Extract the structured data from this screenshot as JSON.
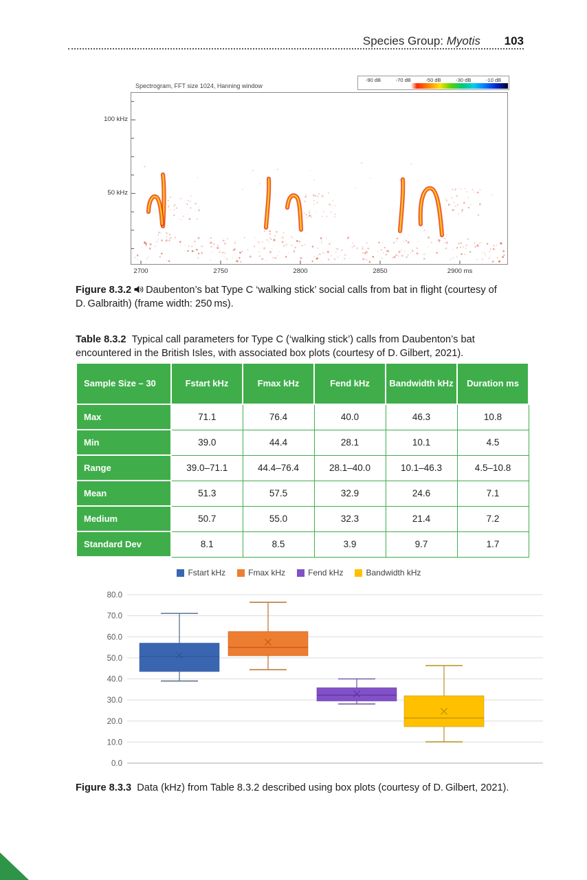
{
  "header": {
    "section_prefix": "Species Group: ",
    "section_italic": "Myotis",
    "page_number": "103"
  },
  "spectrogram": {
    "title": "Spectrogram, FFT size 1024, Hanning window",
    "colorbar": {
      "labels": [
        "-90 dB",
        "-70 dB",
        "-50 dB",
        "-30 dB",
        "-10 dB"
      ],
      "gradient": [
        "#ff2a00",
        "#ff8400",
        "#ffe000",
        "#52d400",
        "#00c87c",
        "#00cfe8",
        "#0078ff",
        "#0022cc",
        "#000428"
      ]
    },
    "y_ticks": [
      "100 kHz",
      "50 kHz"
    ],
    "x_ticks": [
      "2700",
      "2750",
      "2800",
      "2850",
      "2900 ms"
    ],
    "call_groups_ms": [
      2715,
      2800,
      2890
    ]
  },
  "figure_832": {
    "label": "Figure 8.3.2",
    "caption": "Daubenton’s bat Type C ‘walking stick’ social calls from bat in flight (courtesy of D. Galbraith) (frame width: 250 ms)."
  },
  "table_832": {
    "label": "Table 8.3.2",
    "caption": "Typical call parameters for Type C (‘walking stick’) calls from Daubenton’s bat encountered in the British Isles, with associated box plots (courtesy of D. Gilbert, 2021).",
    "header": [
      "Sample Size – 30",
      "Fstart kHz",
      "Fmax kHz",
      "Fend kHz",
      "Bandwidth kHz",
      "Duration ms"
    ],
    "rows": [
      {
        "label": "Max",
        "values": [
          "71.1",
          "76.4",
          "40.0",
          "46.3",
          "10.8"
        ]
      },
      {
        "label": "Min",
        "values": [
          "39.0",
          "44.4",
          "28.1",
          "10.1",
          "4.5"
        ]
      },
      {
        "label": "Range",
        "values": [
          "39.0–71.1",
          "44.4–76.4",
          "28.1–40.0",
          "10.1–46.3",
          "4.5–10.8"
        ]
      },
      {
        "label": "Mean",
        "values": [
          "51.3",
          "57.5",
          "32.9",
          "24.6",
          "7.1"
        ]
      },
      {
        "label": "Medium",
        "values": [
          "50.7",
          "55.0",
          "32.3",
          "21.4",
          "7.2"
        ]
      },
      {
        "label": "Standard Dev",
        "values": [
          "8.1",
          "8.5",
          "3.9",
          "9.7",
          "1.7"
        ]
      }
    ],
    "header_bg": "#3FAE4A"
  },
  "chart_data": {
    "type": "boxplot",
    "title": "",
    "xlabel": "",
    "ylabel": "",
    "ylim": [
      0,
      80
    ],
    "y_tick_step": 10,
    "y_tick_labels": [
      "0.0",
      "10.0",
      "20.0",
      "30.0",
      "40.0",
      "50.0",
      "60.0",
      "70.0",
      "80.0"
    ],
    "grid": true,
    "legend_position": "top",
    "series": [
      {
        "name": "Fstart kHz",
        "color": "#3A66B1",
        "stroke": "#2F5597",
        "whisker": "#5B7394",
        "whisker_low": 39.0,
        "q1": 43.5,
        "median": 50.7,
        "mean": 51.3,
        "q3": 57.0,
        "whisker_high": 71.1
      },
      {
        "name": "Fmax kHz",
        "color": "#ED7D31",
        "stroke": "#C55A11",
        "whisker": "#C07A3C",
        "whisker_low": 44.4,
        "q1": 51.0,
        "median": 55.0,
        "mean": 57.5,
        "q3": 62.5,
        "whisker_high": 76.4
      },
      {
        "name": "Fend kHz",
        "color": "#8250C8",
        "stroke": "#5C3696",
        "whisker": "#7A5CA8",
        "whisker_low": 28.1,
        "q1": 29.5,
        "median": 32.3,
        "mean": 32.9,
        "q3": 35.8,
        "whisker_high": 40.0
      },
      {
        "name": "Bandwidth kHz",
        "color": "#FFC000",
        "stroke": "#BF9000",
        "whisker": "#B99A2E",
        "whisker_low": 10.1,
        "q1": 17.3,
        "median": 21.4,
        "mean": 24.6,
        "q3": 32.0,
        "whisker_high": 46.3
      }
    ]
  },
  "figure_833": {
    "label": "Figure 8.3.3",
    "caption": "Data (kHz) from Table 8.3.2 described using box plots (courtesy of D. Gilbert, 2021)."
  },
  "colors": {
    "table_green": "#3FAE4A",
    "corner_triangle": "#2E9447"
  }
}
